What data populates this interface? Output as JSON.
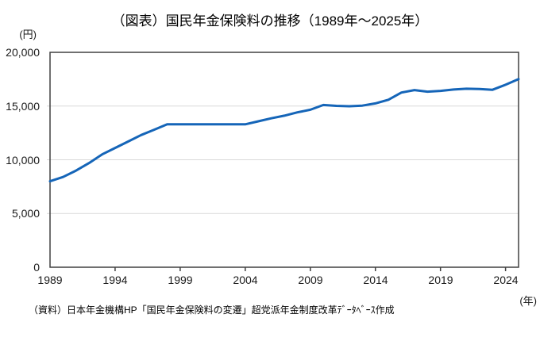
{
  "title": "（図表）国民年金保険料の推移（1989年～2025年）",
  "y_axis_unit": "(円)",
  "x_axis_unit": "(年)",
  "source_note": "（資料）日本年金機構HP「国民年金保険料の変遷」超党派年金制度改革ﾃﾞｰﾀﾍﾞｰｽ作成",
  "chart_data": {
    "type": "line",
    "title": "（図表）国民年金保険料の推移（1989年～2025年）",
    "xlabel": "(年)",
    "ylabel": "(円)",
    "x": [
      1989,
      1990,
      1991,
      1992,
      1993,
      1994,
      1995,
      1996,
      1997,
      1998,
      1999,
      2000,
      2001,
      2002,
      2003,
      2004,
      2005,
      2006,
      2007,
      2008,
      2009,
      2010,
      2011,
      2012,
      2013,
      2014,
      2015,
      2016,
      2017,
      2018,
      2019,
      2020,
      2021,
      2022,
      2023,
      2024,
      2025
    ],
    "values": [
      8000,
      8400,
      9000,
      9700,
      10500,
      11100,
      11700,
      12300,
      12800,
      13300,
      13300,
      13300,
      13300,
      13300,
      13300,
      13300,
      13580,
      13860,
      14100,
      14410,
      14660,
      15100,
      15020,
      14980,
      15040,
      15250,
      15590,
      16260,
      16490,
      16340,
      16410,
      16540,
      16610,
      16590,
      16520,
      16980,
      17510
    ],
    "xlim": [
      1989,
      2025
    ],
    "ylim": [
      0,
      20000
    ],
    "y_ticks": [
      0,
      5000,
      10000,
      15000,
      20000
    ],
    "y_tick_labels": [
      "0",
      "5,000",
      "10,000",
      "15,000",
      "20,000"
    ],
    "x_ticks": [
      1989,
      1994,
      1999,
      2004,
      2009,
      2014,
      2019,
      2024
    ],
    "x_tick_labels": [
      "1989",
      "1994",
      "1999",
      "2004",
      "2009",
      "2014",
      "2019",
      "2024"
    ],
    "grid": "horizontal",
    "legend": "none",
    "markers": "none",
    "colors": {
      "line": "#1565B8",
      "plot_border": "#404040",
      "gridline": "#D9D9D9",
      "text": "#1a1a1a"
    }
  }
}
